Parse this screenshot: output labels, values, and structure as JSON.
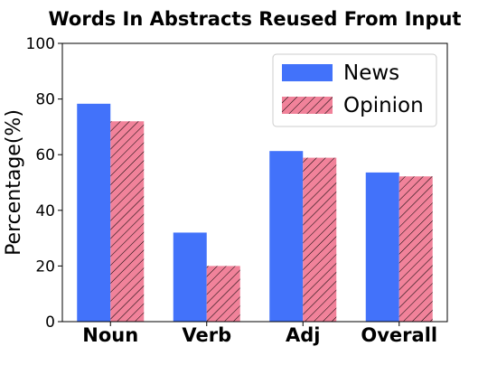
{
  "chart_data": {
    "type": "bar",
    "title": "Words In Abstracts Reused From Input",
    "xlabel": "",
    "ylabel": "Percentage(%)",
    "categories": [
      "Noun",
      "Verb",
      "Adj",
      "Overall"
    ],
    "series": [
      {
        "name": "News",
        "values": [
          78.3,
          32.0,
          61.3,
          53.6
        ],
        "color": "#4272fa",
        "pattern": "solid"
      },
      {
        "name": "Opinion",
        "values": [
          72.0,
          20.0,
          58.9,
          52.2
        ],
        "color": "#f1829a",
        "pattern": "hatched"
      }
    ],
    "ylim": [
      0,
      100
    ],
    "yticks": [
      "0",
      "20",
      "40",
      "60",
      "80",
      "100"
    ],
    "grid": false,
    "legend": "top-right"
  }
}
